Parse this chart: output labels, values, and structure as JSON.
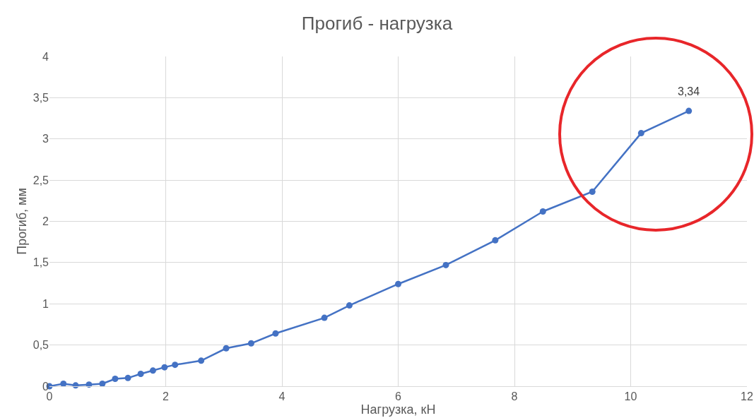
{
  "chart_data": {
    "type": "line",
    "title": "Прогиб - нагрузка",
    "xlabel": "Нагрузка, кН",
    "ylabel": "Прогиб, мм",
    "x": [
      0,
      0.24,
      0.45,
      0.68,
      0.91,
      1.13,
      1.35,
      1.57,
      1.78,
      1.98,
      2.16,
      2.61,
      3.04,
      3.47,
      3.89,
      4.73,
      5.16,
      6.0,
      6.82,
      7.67,
      8.49,
      9.34,
      10.18,
      11.0
    ],
    "series": [
      {
        "color": "#4472c4",
        "values": [
          0,
          0.03,
          0.01,
          0.02,
          0.03,
          0.09,
          0.1,
          0.15,
          0.19,
          0.23,
          0.26,
          0.31,
          0.46,
          0.52,
          0.64,
          0.83,
          0.98,
          1.24,
          1.47,
          1.77,
          2.12,
          2.36,
          3.07,
          3.34
        ]
      }
    ],
    "annotations": [
      {
        "text": "3,34",
        "x": 11.0,
        "y": 3.34
      }
    ],
    "xlim": [
      0,
      12
    ],
    "xticks": [
      0,
      2,
      4,
      6,
      8,
      10,
      12
    ],
    "ylim": [
      0,
      4
    ],
    "yticks": [
      0,
      {
        "value": 0.5,
        "label": "0,5"
      },
      1,
      {
        "value": 1.5,
        "label": "1,5"
      },
      2,
      {
        "value": 2.5,
        "label": "2,5"
      },
      3,
      {
        "value": 3.5,
        "label": "3,5"
      },
      4
    ],
    "grid": true,
    "marker": "circle",
    "line_style": "solid"
  }
}
